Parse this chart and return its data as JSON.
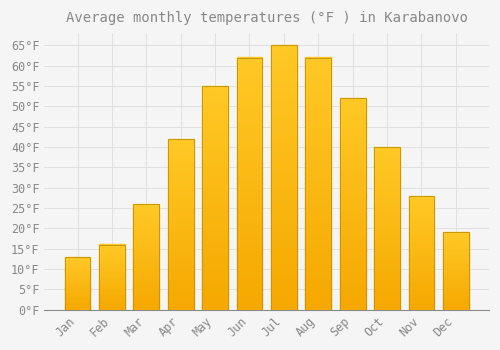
{
  "title": "Average monthly temperatures (°F ) in Karabanovo",
  "months": [
    "Jan",
    "Feb",
    "Mar",
    "Apr",
    "May",
    "Jun",
    "Jul",
    "Aug",
    "Sep",
    "Oct",
    "Nov",
    "Dec"
  ],
  "values": [
    13,
    16,
    26,
    42,
    55,
    62,
    65,
    62,
    52,
    40,
    28,
    19
  ],
  "bar_color_top": "#FFC825",
  "bar_color_bottom": "#F5A800",
  "bar_edge_color": "#C8960A",
  "background_color": "#F5F5F5",
  "plot_bg_color": "#F5F5F5",
  "grid_color": "#DDDDDD",
  "text_color": "#888888",
  "ylim": [
    0,
    68
  ],
  "yticks": [
    0,
    5,
    10,
    15,
    20,
    25,
    30,
    35,
    40,
    45,
    50,
    55,
    60,
    65
  ],
  "ylabel_suffix": "°F",
  "title_fontsize": 10,
  "tick_fontsize": 8.5,
  "font_family": "monospace",
  "bar_width": 0.75
}
